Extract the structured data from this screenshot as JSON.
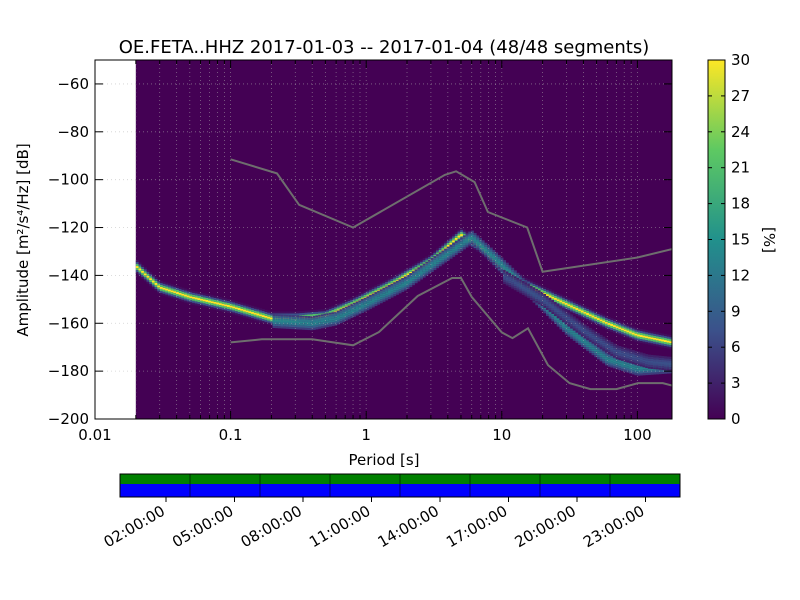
{
  "chart_data": {
    "type": "heatmap",
    "title": "OE.FETA..HHZ   2017-01-03 -- 2017-01-04  (48/48 segments)",
    "xlabel": "Period [s]",
    "ylabel": "Amplitude [m²/s⁴/Hz] [dB]",
    "xscale": "log",
    "xlim": [
      0.01,
      180
    ],
    "ylim": [
      -200,
      -50
    ],
    "x_ticks": [
      0.01,
      0.1,
      1,
      10,
      100
    ],
    "x_tick_labels": [
      "0.01",
      "0.1",
      "1",
      "10",
      "100"
    ],
    "y_ticks": [
      -200,
      -180,
      -160,
      -140,
      -120,
      -100,
      -80,
      -60
    ],
    "y_tick_labels": [
      "−200",
      "−180",
      "−160",
      "−140",
      "−120",
      "−100",
      "−80",
      "−60"
    ],
    "colorbar": {
      "label": "[%]",
      "range": [
        0,
        30
      ],
      "ticks": [
        0,
        3,
        6,
        9,
        12,
        15,
        18,
        21,
        24,
        27,
        30
      ],
      "tick_labels": [
        "0",
        "3",
        "6",
        "9",
        "12",
        "15",
        "18",
        "21",
        "24",
        "27",
        "30"
      ],
      "colormap": [
        "#440154",
        "#3b528b",
        "#21918c",
        "#5ec962",
        "#fde725"
      ]
    },
    "no_data_period_max": 0.02,
    "psd_tracks": [
      {
        "name": "dominant",
        "points": [
          [
            0.02,
            -136
          ],
          [
            0.03,
            -145
          ],
          [
            0.05,
            -149
          ],
          [
            0.1,
            -153
          ],
          [
            0.2,
            -158
          ],
          [
            0.3,
            -158
          ],
          [
            0.5,
            -157
          ],
          [
            0.8,
            -152
          ],
          [
            1.5,
            -144
          ],
          [
            3,
            -134
          ],
          [
            5,
            -123
          ],
          [
            7,
            -128
          ],
          [
            10,
            -137
          ],
          [
            15,
            -144
          ],
          [
            30,
            -152
          ],
          [
            60,
            -160
          ],
          [
            100,
            -165
          ],
          [
            180,
            -168
          ]
        ],
        "strength": 30
      },
      {
        "name": "secondary",
        "points": [
          [
            0.2,
            -159
          ],
          [
            0.4,
            -160
          ],
          [
            0.6,
            -158
          ],
          [
            1,
            -152
          ],
          [
            2,
            -143
          ],
          [
            4,
            -131
          ],
          [
            6,
            -124
          ],
          [
            9,
            -133
          ],
          [
            15,
            -145
          ],
          [
            30,
            -162
          ],
          [
            60,
            -175
          ],
          [
            100,
            -179
          ],
          [
            180,
            -178
          ]
        ],
        "strength": 15
      },
      {
        "name": "tertiary",
        "points": [
          [
            10,
            -140
          ],
          [
            20,
            -150
          ],
          [
            40,
            -163
          ],
          [
            70,
            -172
          ],
          [
            120,
            -176
          ],
          [
            180,
            -177
          ]
        ],
        "strength": 8
      }
    ],
    "noise_models": [
      {
        "name": "NHNM",
        "x": [
          0.1,
          0.22,
          0.32,
          0.8,
          3.8,
          4.6,
          6.3,
          7.9,
          15.4,
          20,
          100,
          180
        ],
        "y": [
          -91.5,
          -97.4,
          -110.5,
          -120,
          -98,
          -96.5,
          -101,
          -113.5,
          -120,
          -138.5,
          -132.5,
          -129
        ]
      },
      {
        "name": "NLNM",
        "x": [
          0.1,
          0.17,
          0.4,
          0.8,
          1.24,
          2.4,
          4.3,
          5,
          6,
          10,
          12,
          15.6,
          21.9,
          31.6,
          45,
          70,
          101,
          154,
          180
        ],
        "y": [
          -168,
          -166.7,
          -166.7,
          -169.2,
          -163.7,
          -148.6,
          -141.1,
          -141.1,
          -149,
          -163.8,
          -166.2,
          -162.1,
          -177.5,
          -185,
          -187.5,
          -187.5,
          -185,
          -185,
          -186
        ]
      }
    ]
  },
  "time_axis": {
    "tick_labels": [
      "02:00:00",
      "05:00:00",
      "08:00:00",
      "11:00:00",
      "14:00:00",
      "17:00:00",
      "20:00:00",
      "23:00:00"
    ],
    "coverage_colors": {
      "data": "#008000",
      "used": "#0000ff"
    }
  }
}
